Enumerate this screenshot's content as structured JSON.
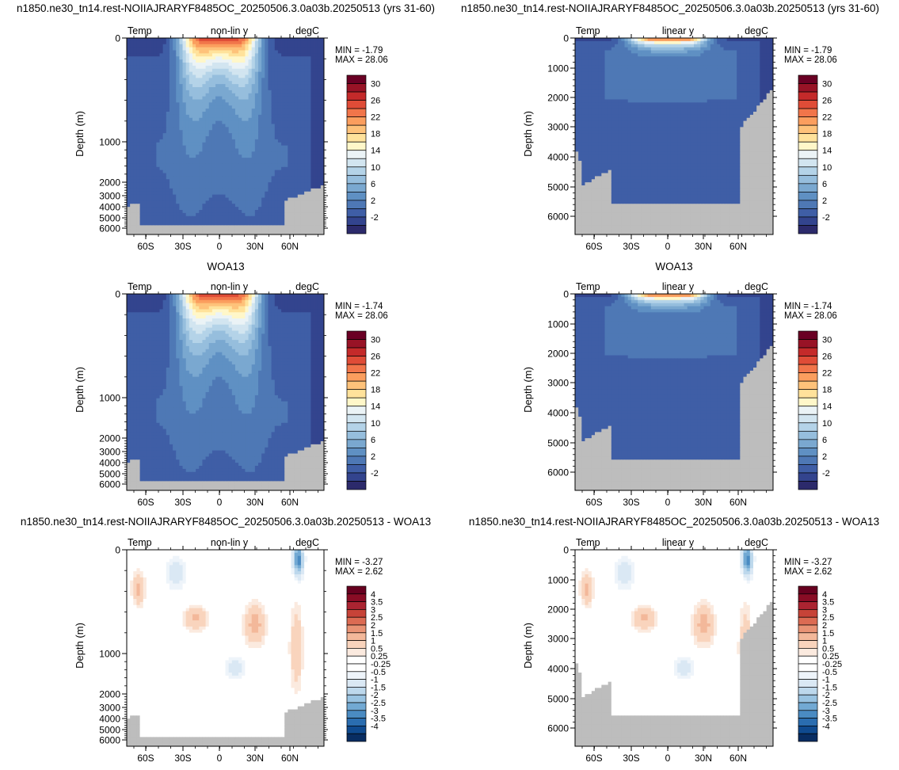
{
  "colors": {
    "abs": [
      "#2c2a6b",
      "#33448e",
      "#3f5ea6",
      "#4e78b5",
      "#5f90c3",
      "#7aa8d0",
      "#96bedd",
      "#b4d3e8",
      "#d2e5f0",
      "#ebf3f6",
      "#fff7c9",
      "#ffe29b",
      "#fec27a",
      "#fb9e5e",
      "#f1754a",
      "#df4c37",
      "#c42a2a",
      "#981326",
      "#6a0024"
    ],
    "diff": [
      "#082d62",
      "#0f4a8f",
      "#2a6db0",
      "#4a8bc2",
      "#72a9d3",
      "#99c3e1",
      "#bdd8ec",
      "#dae8f4",
      "#eef4fa",
      "#ffffff",
      "#ffffff",
      "#fbeadf",
      "#f9d4bd",
      "#f3b89a",
      "#e99375",
      "#dc6b53",
      "#c74338",
      "#ab2431",
      "#890c25",
      "#67001f"
    ],
    "land": "#bdbdbd"
  },
  "chart_data": [
    {
      "type": "heatmap",
      "title": "n1850.ne30_tn14.rest-NOIIAJRARYF8485OC_20250506.3.0a03b.20250513 (yrs 31-60)",
      "label_left": "Temp",
      "label_center": "non-lin y",
      "label_right": "degC",
      "ylabel": "Depth (m)",
      "y_scale": "non-linear",
      "yticks": [
        "0",
        "1000",
        "2000",
        "3000",
        "4000",
        "5000",
        "6000"
      ],
      "xticks": [
        "60S",
        "30S",
        "0",
        "30N",
        "60N"
      ],
      "min_text": "MIN = -1.79",
      "max_text": "MAX =  28.06",
      "colorbar_labels": [
        "30",
        "26",
        "22",
        "18",
        "14",
        "10",
        "6",
        "2",
        "-2"
      ]
    },
    {
      "type": "heatmap",
      "title": "n1850.ne30_tn14.rest-NOIIAJRARYF8485OC_20250506.3.0a03b.20250513 (yrs 31-60)",
      "label_left": "Temp",
      "label_center": "linear y",
      "label_right": "degC",
      "ylabel": "Depth (m)",
      "y_scale": "linear",
      "yticks": [
        "0",
        "1000",
        "2000",
        "3000",
        "4000",
        "5000",
        "6000"
      ],
      "xticks": [
        "60S",
        "30S",
        "0",
        "30N",
        "60N"
      ],
      "min_text": "MIN = -1.79",
      "max_text": "MAX =  28.06",
      "colorbar_labels": [
        "30",
        "26",
        "22",
        "18",
        "14",
        "10",
        "6",
        "2",
        "-2"
      ]
    },
    {
      "type": "heatmap",
      "title": "WOA13",
      "label_left": "Temp",
      "label_center": "non-lin y",
      "label_right": "degC",
      "ylabel": "Depth (m)",
      "y_scale": "non-linear",
      "yticks": [
        "0",
        "1000",
        "2000",
        "3000",
        "4000",
        "5000",
        "6000"
      ],
      "xticks": [
        "60S",
        "30S",
        "0",
        "30N",
        "60N"
      ],
      "min_text": "MIN = -1.74",
      "max_text": "MAX =  28.06",
      "colorbar_labels": [
        "30",
        "26",
        "22",
        "18",
        "14",
        "10",
        "6",
        "2",
        "-2"
      ]
    },
    {
      "type": "heatmap",
      "title": "WOA13",
      "label_left": "Temp",
      "label_center": "linear y",
      "label_right": "degC",
      "ylabel": "Depth (m)",
      "y_scale": "linear",
      "yticks": [
        "0",
        "1000",
        "2000",
        "3000",
        "4000",
        "5000",
        "6000"
      ],
      "xticks": [
        "60S",
        "30S",
        "0",
        "30N",
        "60N"
      ],
      "min_text": "MIN = -1.74",
      "max_text": "MAX =  28.06",
      "colorbar_labels": [
        "30",
        "26",
        "22",
        "18",
        "14",
        "10",
        "6",
        "2",
        "-2"
      ]
    },
    {
      "type": "heatmap",
      "title": "n1850.ne30_tn14.rest-NOIIAJRARYF8485OC_20250506.3.0a03b.20250513 - WOA13",
      "label_left": "Temp",
      "label_center": "non-lin y",
      "label_right": "degC",
      "ylabel": "Depth (m)",
      "y_scale": "non-linear",
      "yticks": [
        "0",
        "1000",
        "2000",
        "3000",
        "4000",
        "5000",
        "6000"
      ],
      "xticks": [
        "60S",
        "30S",
        "0",
        "30N",
        "60N"
      ],
      "min_text": "MIN = -3.27",
      "max_text": "MAX =  2.62",
      "colorbar_labels": [
        "4",
        "3.5",
        "3",
        "2.5",
        "2",
        "1.5",
        "1",
        "0.5",
        "0.25",
        "-0.25",
        "-0.5",
        "-1",
        "-1.5",
        "-2",
        "-2.5",
        "-3",
        "-3.5",
        "-4"
      ]
    },
    {
      "type": "heatmap",
      "title": "n1850.ne30_tn14.rest-NOIIAJRARYF8485OC_20250506.3.0a03b.20250513 - WOA13",
      "label_left": "Temp",
      "label_center": "linear y",
      "label_right": "degC",
      "ylabel": "Depth (m)",
      "y_scale": "linear",
      "yticks": [
        "0",
        "1000",
        "2000",
        "3000",
        "4000",
        "5000",
        "6000"
      ],
      "xticks": [
        "60S",
        "30S",
        "0",
        "30N",
        "60N"
      ],
      "min_text": "MIN = -3.27",
      "max_text": "MAX =  2.62",
      "colorbar_labels": [
        "4",
        "3.5",
        "3",
        "2.5",
        "2",
        "1.5",
        "1",
        "0.5",
        "0.25",
        "-0.25",
        "-0.5",
        "-1",
        "-1.5",
        "-2",
        "-2.5",
        "-3",
        "-3.5",
        "-4"
      ]
    }
  ]
}
